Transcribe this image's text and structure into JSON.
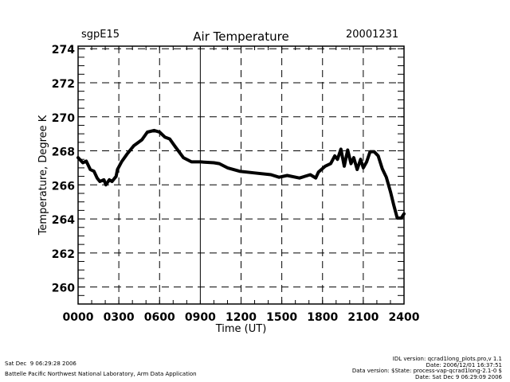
{
  "header": {
    "site": "sgpE15",
    "date": "20001231"
  },
  "footer": {
    "left_lines": [
      "Sat Dec  9 06:29:28 2006",
      "Battelle Pacific Northwest National Laboratory, Arm Data Application"
    ],
    "right_lines": [
      "IDL version: qcrad1long_plots.pro,v 1.1",
      "Date: 2006/12/01 16:37:51",
      "Data version: $State: process-vap-qcrad1long-2.1-0 $",
      "Date: Sat Dec  9 06:29:09 2006"
    ]
  },
  "chart_data": {
    "type": "line",
    "title": "Air Temperature",
    "xlabel": "Time (UT)",
    "ylabel": "Temperature, Degree K",
    "xlim": [
      0,
      24
    ],
    "ylim": [
      259,
      274.15
    ],
    "grid": true,
    "xticks": [
      0,
      3,
      6,
      9,
      12,
      15,
      18,
      21,
      24
    ],
    "xtick_labels": [
      "0000",
      "0300",
      "0600",
      "0900",
      "1200",
      "1500",
      "1800",
      "2100",
      "2400"
    ],
    "yticks": [
      260,
      262,
      264,
      266,
      268,
      270,
      272,
      274
    ],
    "ytick_labels": [
      "260",
      "262",
      "264",
      "266",
      "268",
      "270",
      "272",
      "274"
    ],
    "series": [
      {
        "name": "Air Temperature",
        "color": "#000000",
        "x": [
          0.0,
          0.35,
          0.6,
          0.9,
          1.17,
          1.4,
          1.6,
          1.9,
          2.05,
          2.3,
          2.5,
          2.8,
          2.9,
          3.2,
          3.6,
          4.1,
          4.7,
          5.1,
          5.6,
          6.0,
          6.4,
          6.75,
          7.15,
          7.75,
          8.35,
          9.0,
          10.0,
          10.4,
          11.0,
          11.9,
          13.0,
          14.2,
          14.8,
          15.4,
          16.3,
          17.1,
          17.5,
          17.7,
          18.2,
          18.6,
          18.9,
          19.1,
          19.35,
          19.6,
          19.85,
          20.1,
          20.3,
          20.55,
          20.8,
          21.0,
          21.25,
          21.5,
          21.8,
          22.1,
          22.4,
          22.7,
          23.0,
          23.25,
          23.5,
          23.8,
          24.0
        ],
        "y": [
          267.6,
          267.3,
          267.4,
          266.9,
          266.8,
          266.4,
          266.2,
          266.3,
          266.0,
          266.3,
          266.2,
          266.5,
          266.9,
          267.35,
          267.8,
          268.3,
          268.65,
          269.1,
          269.2,
          269.1,
          268.8,
          268.7,
          268.25,
          267.6,
          267.35,
          267.35,
          267.3,
          267.25,
          267.0,
          266.8,
          266.7,
          266.6,
          266.45,
          266.55,
          266.4,
          266.6,
          266.4,
          266.75,
          267.1,
          267.25,
          267.7,
          267.5,
          268.1,
          267.1,
          268.05,
          267.25,
          267.6,
          266.9,
          267.5,
          267.0,
          267.35,
          267.95,
          267.95,
          267.7,
          266.95,
          266.45,
          265.6,
          264.8,
          264.05,
          264.05,
          264.3
        ]
      }
    ]
  }
}
